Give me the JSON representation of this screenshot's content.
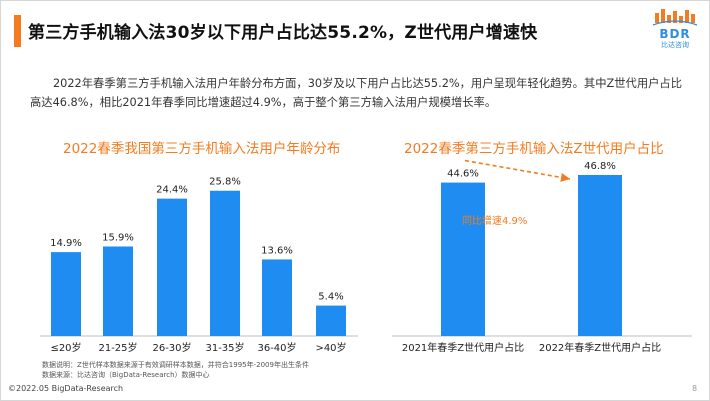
{
  "title": "第三方手机输入法30岁以下用户占比达55.2%，Z世代用户增速快",
  "logo": {
    "main": "BDR",
    "sub": "比达咨询"
  },
  "description": "2022年春季第三方手机输入法用户年龄分布方面，30岁及以下用户占比达55.2%，用户呈现年轻化趋势。其中Z世代用户占比高达46.8%，相比2021年春季同比增速超过4.9%，高于整个第三方输入法用户规模增长率。",
  "notes": {
    "line1": "数据说明：Z世代样本数据来源于有效调研样本数据，并符合1995年-2009年出生条件",
    "line2": "数据来源：比达咨询（BigData-Research）数据中心"
  },
  "footer": "©2022.05 BigData-Research",
  "page_number": "8",
  "colors": {
    "accent": "#f47b20",
    "bar": "#1e8cf0"
  },
  "chart_data": [
    {
      "type": "bar",
      "title": "2022春季我国第三方手机输入法用户年龄分布",
      "categories": [
        "≤20岁",
        "21-25岁",
        "26-30岁",
        "31-35岁",
        "36-40岁",
        ">40岁"
      ],
      "values": [
        14.9,
        15.9,
        24.4,
        25.8,
        13.6,
        5.4
      ],
      "value_labels": [
        "14.9%",
        "15.9%",
        "24.4%",
        "25.8%",
        "13.6%",
        "5.4%"
      ],
      "ylim": [
        0,
        30
      ]
    },
    {
      "type": "bar",
      "title": "2022春季第三方手机输入法Z世代用户占比",
      "categories": [
        "2021年春季Z世代用户占比",
        "2022年春季Z世代用户占比"
      ],
      "values": [
        44.6,
        46.8
      ],
      "value_labels": [
        "44.6%",
        "46.8%"
      ],
      "annotation": "同比增速4.9%"
    }
  ]
}
